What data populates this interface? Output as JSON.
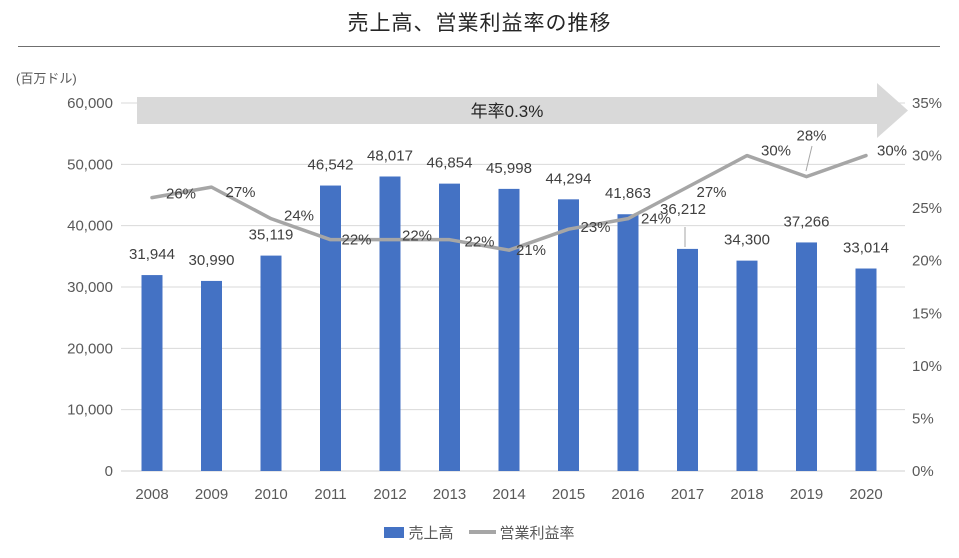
{
  "colors": {
    "bar": "#4472C4",
    "line": "#A6A6A6",
    "arrow_banner": "#D9D9D9",
    "gridline": "#D9D9D9",
    "axis_baseline": "#CFCFCF",
    "axis_text": "#595959",
    "data_label_text": "#404040",
    "title_text": "#262626",
    "leader_line": "#A6A6A6"
  },
  "chart_data": {
    "type": "combo-bar-line",
    "title": "売上高、営業利益率の推移",
    "categories": [
      "2008",
      "2009",
      "2010",
      "2011",
      "2012",
      "2013",
      "2014",
      "2015",
      "2016",
      "2017",
      "2018",
      "2019",
      "2020"
    ],
    "series": [
      {
        "name": "売上高",
        "type": "bar",
        "axis": "left",
        "values": [
          31944,
          30990,
          35119,
          46542,
          48017,
          46854,
          45998,
          44294,
          41863,
          36212,
          34300,
          37266,
          33014
        ],
        "labels": [
          "31,944",
          "30,990",
          "35,119",
          "46,542",
          "48,017",
          "46,854",
          "45,998",
          "44,294",
          "41,863",
          "36,212",
          "34,300",
          "37,266",
          "33,014"
        ]
      },
      {
        "name": "営業利益率",
        "type": "line",
        "axis": "right",
        "values": [
          0.26,
          0.27,
          0.24,
          0.22,
          0.22,
          0.22,
          0.21,
          0.23,
          0.24,
          0.27,
          0.3,
          0.28,
          0.3
        ],
        "labels": [
          "26%",
          "27%",
          "24%",
          "22%",
          "22%",
          "22%",
          "21%",
          "23%",
          "24%",
          "27%",
          "30%",
          "28%",
          "30%"
        ]
      }
    ],
    "left_axis": {
      "unit": "(百万ドル)",
      "min": 0,
      "max": 60000,
      "step": 10000,
      "tick_labels_top_down": [
        "60,000",
        "50,000",
        "40,000",
        "30,000",
        "20,000",
        "10,000",
        "0"
      ]
    },
    "right_axis": {
      "min": 0,
      "max": 0.35,
      "step": 0.05,
      "tick_labels_top_down": [
        "35%",
        "30%",
        "25%",
        "20%",
        "15%",
        "10%",
        "5%",
        "0%"
      ]
    },
    "annotation": {
      "text": "年率0.3%"
    },
    "legend_position": "bottom",
    "grid": "horizontal-only"
  }
}
